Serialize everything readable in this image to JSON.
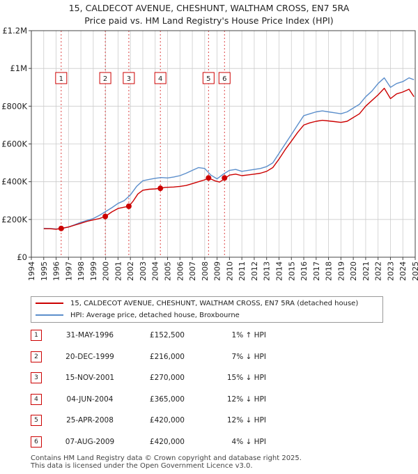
{
  "title": "15, CALDECOT AVENUE, CHESHUNT, WALTHAM CROSS, EN7 5RA",
  "subtitle": "Price paid vs. HM Land Registry's House Price Index (HPI)",
  "colors": {
    "property": "#cc0000",
    "hpi": "#5b8ecb",
    "vline": "#dd4444",
    "grid": "#cccccc"
  },
  "legend": {
    "property_label": "15, CALDECOT AVENUE, CHESHUNT, WALTHAM CROSS, EN7 5RA (detached house)",
    "hpi_label": "HPI: Average price, detached house, Broxbourne"
  },
  "sales": [
    {
      "num": "1",
      "date": "31-MAY-1996",
      "price": "£152,500",
      "hpi": "1% ↑ HPI"
    },
    {
      "num": "2",
      "date": "20-DEC-1999",
      "price": "£216,000",
      "hpi": "7% ↓ HPI"
    },
    {
      "num": "3",
      "date": "15-NOV-2001",
      "price": "£270,000",
      "hpi": "15% ↓ HPI"
    },
    {
      "num": "4",
      "date": "04-JUN-2004",
      "price": "£365,000",
      "hpi": "12% ↓ HPI"
    },
    {
      "num": "5",
      "date": "25-APR-2008",
      "price": "£420,000",
      "hpi": "12% ↓ HPI"
    },
    {
      "num": "6",
      "date": "07-AUG-2009",
      "price": "£420,000",
      "hpi": "4% ↓ HPI"
    }
  ],
  "footer": {
    "line1": "Contains HM Land Registry data © Crown copyright and database right 2025.",
    "line2": "This data is licensed under the Open Government Licence v3.0."
  },
  "chart_data": {
    "type": "line",
    "title": "15, CALDECOT AVENUE, CHESHUNT, WALTHAM CROSS, EN7 5RA",
    "subtitle": "Price paid vs. HM Land Registry's House Price Index (HPI)",
    "xlabel": "",
    "ylabel": "",
    "xlim": [
      1994,
      2025
    ],
    "ylim": [
      0,
      1200000
    ],
    "grid": true,
    "legend_position": "bottom",
    "x_ticks": [
      "1994",
      "1995",
      "1996",
      "1997",
      "1998",
      "1999",
      "2000",
      "2001",
      "2002",
      "2003",
      "2004",
      "2005",
      "2006",
      "2007",
      "2008",
      "2009",
      "2010",
      "2011",
      "2012",
      "2013",
      "2014",
      "2015",
      "2016",
      "2017",
      "2018",
      "2019",
      "2020",
      "2021",
      "2022",
      "2023",
      "2024",
      "2025"
    ],
    "y_ticks": [
      {
        "value": 0,
        "label": "£0"
      },
      {
        "value": 200000,
        "label": "£200K"
      },
      {
        "value": 400000,
        "label": "£400K"
      },
      {
        "value": 600000,
        "label": "£600K"
      },
      {
        "value": 800000,
        "label": "£800K"
      },
      {
        "value": 1000000,
        "label": "£1M"
      },
      {
        "value": 1200000,
        "label": "£1.2M"
      }
    ],
    "series": [
      {
        "name": "HPI: Average price, detached house, Broxbourne",
        "color": "#5b8ecb",
        "x": [
          1995,
          1995.5,
          1996,
          1996.4,
          1997,
          1997.5,
          1998,
          1998.5,
          1999,
          1999.5,
          2000,
          2000.5,
          2001,
          2001.5,
          2002,
          2002.5,
          2003,
          2003.5,
          2004,
          2004.5,
          2005,
          2005.5,
          2006,
          2006.5,
          2007,
          2007.5,
          2008,
          2008.5,
          2009,
          2009.5,
          2010,
          2010.5,
          2011,
          2011.5,
          2012,
          2012.5,
          2013,
          2013.5,
          2014,
          2014.5,
          2015,
          2015.5,
          2016,
          2016.5,
          2017,
          2017.5,
          2018,
          2018.5,
          2019,
          2019.5,
          2020,
          2020.5,
          2021,
          2021.5,
          2022,
          2022.5,
          2023,
          2023.5,
          2024,
          2024.5,
          2024.9
        ],
        "values": [
          153000,
          152000,
          150000,
          151000,
          160000,
          172000,
          185000,
          195000,
          205000,
          222000,
          242000,
          262000,
          285000,
          300000,
          330000,
          375000,
          405000,
          412000,
          418000,
          422000,
          420000,
          425000,
          432000,
          445000,
          460000,
          475000,
          470000,
          435000,
          415000,
          440000,
          460000,
          465000,
          455000,
          460000,
          465000,
          470000,
          480000,
          500000,
          550000,
          600000,
          650000,
          700000,
          750000,
          760000,
          770000,
          775000,
          770000,
          765000,
          760000,
          770000,
          790000,
          810000,
          850000,
          880000,
          920000,
          950000,
          900000,
          920000,
          930000,
          950000,
          940000
        ]
      },
      {
        "name": "15, CALDECOT AVENUE, CHESHUNT, WALTHAM CROSS, EN7 5RA (detached house)",
        "color": "#cc0000",
        "x": [
          1995,
          1995.5,
          1996,
          1996.41,
          1997,
          1997.5,
          1998,
          1998.5,
          1999,
          1999.5,
          1999.97,
          2000.5,
          2001,
          2001.5,
          2001.87,
          2002.2,
          2002.6,
          2003,
          2003.5,
          2004,
          2004.42,
          2004.8,
          2005.5,
          2006,
          2006.5,
          2007,
          2007.5,
          2008,
          2008.31,
          2008.8,
          2009.2,
          2009.6,
          2010,
          2010.5,
          2011,
          2011.5,
          2012,
          2012.5,
          2013,
          2013.5,
          2014,
          2014.5,
          2015,
          2015.5,
          2016,
          2016.5,
          2017,
          2017.5,
          2018,
          2018.5,
          2019,
          2019.5,
          2020,
          2020.5,
          2021,
          2021.5,
          2022,
          2022.5,
          2023,
          2023.5,
          2024,
          2024.5,
          2024.9
        ],
        "values": [
          151000,
          151000,
          148000,
          152500,
          160000,
          170000,
          180000,
          190000,
          198000,
          205000,
          216000,
          240000,
          258000,
          265000,
          270000,
          295000,
          335000,
          355000,
          360000,
          362000,
          365000,
          370000,
          372000,
          375000,
          380000,
          390000,
          400000,
          410000,
          420000,
          405000,
          398000,
          415000,
          435000,
          440000,
          432000,
          436000,
          440000,
          445000,
          455000,
          475000,
          520000,
          570000,
          615000,
          660000,
          700000,
          712000,
          720000,
          725000,
          722000,
          718000,
          714000,
          720000,
          740000,
          760000,
          800000,
          830000,
          860000,
          895000,
          840000,
          865000,
          875000,
          890000,
          850000
        ]
      }
    ],
    "sale_markers": [
      {
        "label": "1",
        "x": 1996.41,
        "value": 152500
      },
      {
        "label": "2",
        "x": 1999.97,
        "value": 216000
      },
      {
        "label": "3",
        "x": 2001.87,
        "value": 270000
      },
      {
        "label": "4",
        "x": 2004.42,
        "value": 365000
      },
      {
        "label": "5",
        "x": 2008.31,
        "value": 420000
      },
      {
        "label": "6",
        "x": 2009.6,
        "value": 420000
      }
    ]
  }
}
